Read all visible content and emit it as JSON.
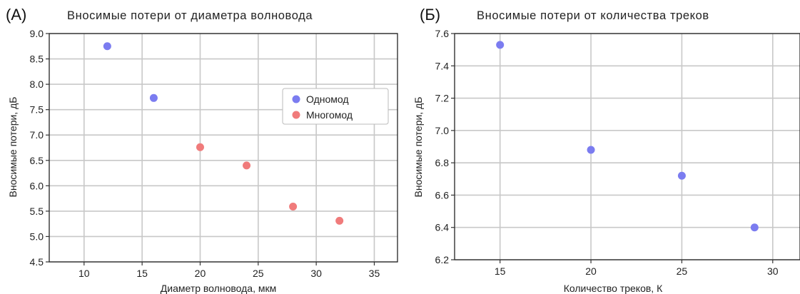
{
  "chart_data": [
    {
      "panel": "(A)",
      "type": "scatter",
      "title": "Вносимые потери от диаметра волновода",
      "xlabel": "Диаметр волновода, мкм",
      "ylabel": "Вносимые потери, дБ",
      "xlim": [
        7,
        37
      ],
      "ylim": [
        4.5,
        9.0
      ],
      "xticks": [
        "10",
        "15",
        "20",
        "25",
        "30",
        "35"
      ],
      "yticks": [
        "4.5",
        "5.0",
        "5.5",
        "6.0",
        "6.5",
        "7.0",
        "7.5",
        "8.0",
        "8.5",
        "9.0"
      ],
      "grid": true,
      "legend_position": "right",
      "series": [
        {
          "name": "Одномод",
          "color": "#7b7cf0",
          "points": [
            [
              12,
              8.75
            ],
            [
              16,
              7.73
            ]
          ]
        },
        {
          "name": "Многомод",
          "color": "#f07b7b",
          "points": [
            [
              20,
              6.76
            ],
            [
              24,
              6.4
            ],
            [
              28,
              5.59
            ],
            [
              32,
              5.31
            ]
          ]
        }
      ]
    },
    {
      "panel": "(Б)",
      "type": "scatter",
      "title": "Вносимые потери от количества треков",
      "xlabel": "Количество треков, К",
      "ylabel": "Вносимые потери, дБ",
      "xlim": [
        12.5,
        31.5
      ],
      "ylim": [
        6.2,
        7.6
      ],
      "xticks": [
        "15",
        "20",
        "25",
        "30"
      ],
      "yticks": [
        "6.2",
        "6.4",
        "6.6",
        "6.8",
        "7.0",
        "7.2",
        "7.4",
        "7.6"
      ],
      "grid": true,
      "series": [
        {
          "color": "#7b7cf0",
          "points": [
            [
              15,
              7.53
            ],
            [
              20,
              6.88
            ],
            [
              25,
              6.72
            ],
            [
              29,
              6.4
            ]
          ]
        }
      ]
    }
  ]
}
